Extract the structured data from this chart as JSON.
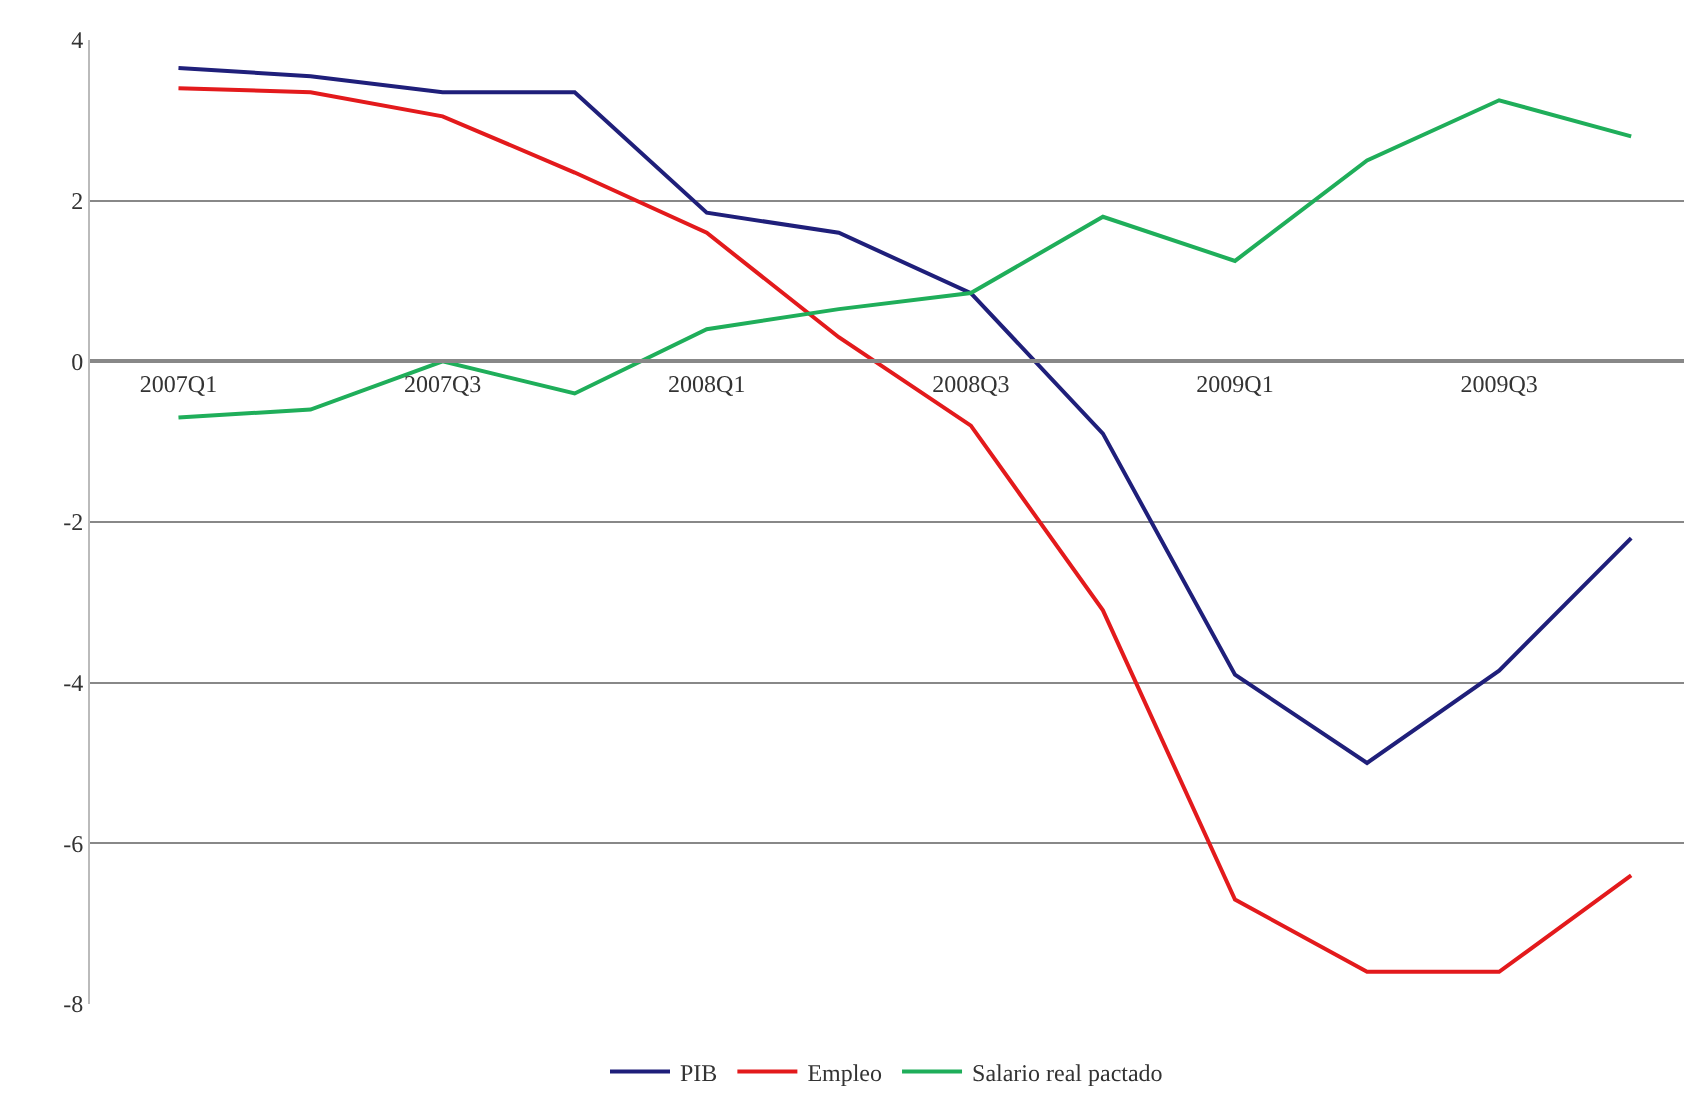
{
  "chart_data": {
    "type": "line",
    "categories": [
      "2007Q1",
      null,
      "2007Q3",
      null,
      "2008Q1",
      null,
      "2008Q3",
      null,
      "2009Q1",
      null,
      "2009Q3",
      null
    ],
    "series": [
      {
        "name": "PIB",
        "color": "#1f1f7a",
        "values": [
          3.65,
          3.55,
          3.35,
          3.35,
          1.85,
          1.6,
          0.85,
          -0.9,
          -3.9,
          -5.0,
          -3.85,
          -2.2
        ]
      },
      {
        "name": "Empleo",
        "color": "#e31a1c",
        "values": [
          3.4,
          3.35,
          3.05,
          2.35,
          1.6,
          0.3,
          -0.8,
          -3.1,
          -6.7,
          -7.6,
          -7.6,
          -6.4
        ]
      },
      {
        "name": "Salario real pactado",
        "color": "#1fae5a",
        "values": [
          -0.7,
          -0.6,
          0.0,
          -0.4,
          0.4,
          0.65,
          0.85,
          1.8,
          1.25,
          2.5,
          3.25,
          2.8
        ]
      }
    ],
    "ylim": [
      -8,
      4
    ],
    "yticks": [
      -8,
      -6,
      -4,
      -2,
      0,
      2,
      4
    ],
    "grid": "y",
    "legend": "bottom",
    "marker": "none",
    "line_style": "solid"
  }
}
